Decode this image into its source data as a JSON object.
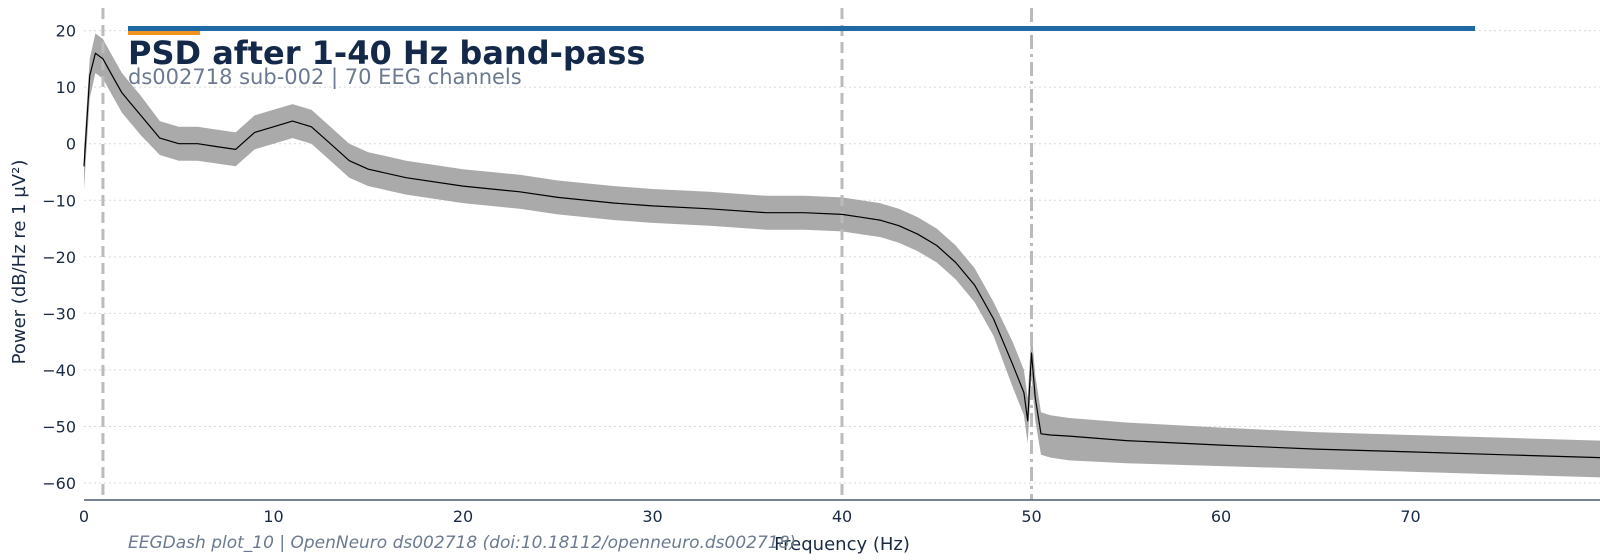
{
  "chart_data": {
    "type": "line",
    "title": "PSD after 1-40 Hz band-pass",
    "subtitle": "ds002718 sub-002 | 70 EEG channels",
    "xlabel": "Frequency (Hz)",
    "ylabel": "Power (dB/Hz re 1 µV²)",
    "footer": "EEGDash plot_10 | OpenNeuro ds002718 (doi:10.18112/openneuro.ds002718)",
    "xlim": [
      0,
      80
    ],
    "ylim": [
      -63,
      24
    ],
    "x_ticks": [
      0,
      10,
      20,
      30,
      40,
      50,
      60,
      70
    ],
    "y_ticks": [
      20,
      10,
      0,
      -10,
      -20,
      -30,
      -40,
      -50,
      -60
    ],
    "grid": {
      "y": true,
      "x": false
    },
    "colors": {
      "line": "#000000",
      "band": "#aaaaaa",
      "vline": "#bbbbbb",
      "accent_blue": "#1f6aa5",
      "accent_orange": "#f0921e",
      "axis": "#4a5a70",
      "title": "#14294a",
      "subtitle": "#6b7a90"
    },
    "vlines": [
      {
        "x": 1,
        "style": "dashed"
      },
      {
        "x": 40,
        "style": "dashed"
      },
      {
        "x": 50,
        "style": "dashdot"
      }
    ],
    "series": [
      {
        "x": [
          0,
          0.3,
          0.6,
          1,
          1.5,
          2,
          3,
          4,
          5,
          6,
          7,
          8,
          9,
          10,
          11,
          12,
          13,
          14,
          15,
          17,
          20,
          23,
          25,
          28,
          30,
          33,
          36,
          38,
          40,
          41,
          42,
          43,
          44,
          45,
          46,
          47,
          48,
          49,
          49.6,
          49.8,
          50,
          50.2,
          50.5,
          51,
          52,
          55,
          60,
          65,
          70,
          75,
          80
        ],
        "values": [
          -4,
          12,
          16,
          15,
          12,
          9,
          5,
          1,
          0,
          0,
          -0.5,
          -1,
          2,
          3,
          4,
          3,
          0,
          -3,
          -4.5,
          -6,
          -7.5,
          -8.5,
          -9.5,
          -10.5,
          -11,
          -11.5,
          -12.2,
          -12.2,
          -12.5,
          -13,
          -13.5,
          -14.5,
          -16,
          -18,
          -21,
          -25,
          -31,
          -39,
          -44,
          -49,
          -37,
          -45,
          -51.3,
          -51.5,
          -51.7,
          -52.5,
          -53.3,
          -54,
          -54.5,
          -55,
          -55.5
        ],
        "upper": [
          -1,
          15,
          19.5,
          18.5,
          15.5,
          12.5,
          8.5,
          4,
          3,
          3,
          2.5,
          2,
          5,
          6,
          7,
          6,
          3,
          0,
          -1.5,
          -3,
          -4.5,
          -5.5,
          -6.5,
          -7.5,
          -8,
          -8.5,
          -9.2,
          -9.2,
          -9.5,
          -10,
          -10.5,
          -11.5,
          -13,
          -15,
          -18,
          -22,
          -28,
          -35,
          -40,
          -45,
          -33,
          -41,
          -47.5,
          -48,
          -48.5,
          -49.3,
          -50.2,
          -51,
          -51.5,
          -52,
          -52.5
        ],
        "lower": [
          -8,
          8,
          12.5,
          11.5,
          8.5,
          5.5,
          1.5,
          -2,
          -3,
          -3,
          -3.5,
          -4,
          -1,
          0,
          1,
          0,
          -3,
          -6,
          -7.5,
          -9,
          -10.5,
          -11.5,
          -12.5,
          -13.5,
          -14,
          -14.5,
          -15.2,
          -15.2,
          -15.5,
          -16,
          -16.5,
          -17.5,
          -19,
          -21,
          -24,
          -28,
          -34,
          -43,
          -48,
          -53,
          -41,
          -49,
          -55,
          -55.5,
          -56,
          -56.5,
          -57,
          -57.5,
          -58,
          -58.5,
          -59
        ]
      }
    ]
  }
}
